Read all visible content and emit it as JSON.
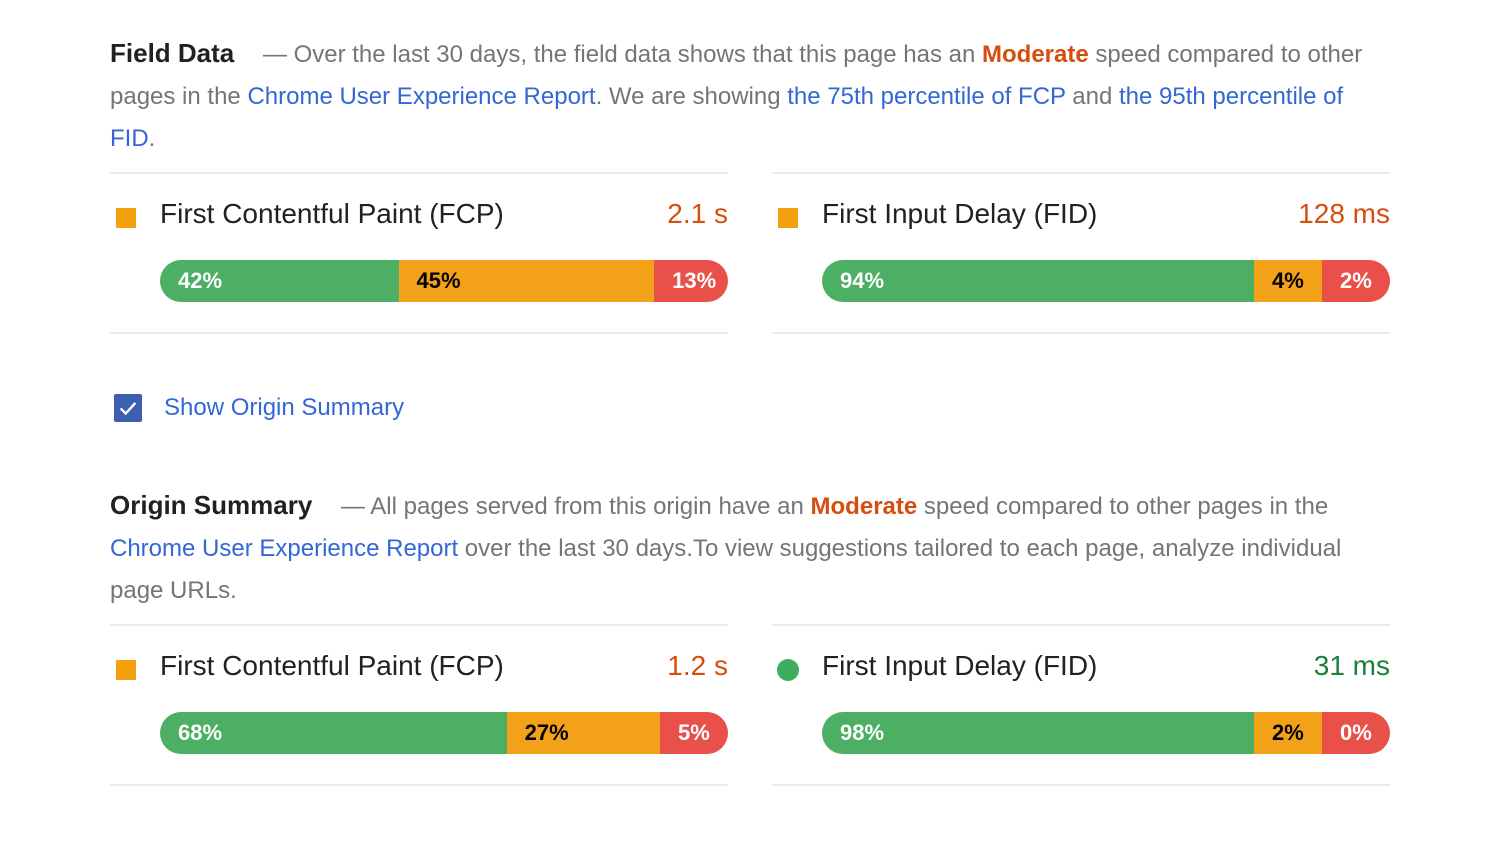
{
  "field_data": {
    "heading": "Field Data",
    "text_1": " — Over the last 30 days, the field data shows that this page has an ",
    "rating": "Moderate",
    "text_2": " speed compared to other pages in the ",
    "report_link": "Chrome User Experience Report",
    "text_3": ". We are showing ",
    "fcp_link": "the 75th percentile of FCP",
    "text_4": " and ",
    "fid_link": "the 95th percentile of FID",
    "text_5": ".",
    "fcp": {
      "title": "First Contentful Paint (FCP)",
      "value": "2.1 s",
      "fast_pct": 42,
      "fast": "42%",
      "avg_pct": 45,
      "avg": "45%",
      "slow_pct": 13,
      "slow": "13%",
      "status_color": "#f4a10f"
    },
    "fid": {
      "title": "First Input Delay (FID)",
      "value": "128 ms",
      "fast_pct": 94,
      "fast": "94%",
      "avg_pct": 4,
      "avg": "4%",
      "slow_pct": 2,
      "slow": "2%",
      "status_color": "#f4a10f"
    }
  },
  "origin_toggle": {
    "label": "Show Origin Summary",
    "checked": true
  },
  "origin_summary": {
    "heading": "Origin Summary",
    "text_1": " — All pages served from this origin have an ",
    "rating": "Moderate",
    "text_2": " speed compared to other pages in the ",
    "report_link": "Chrome User Experience Report",
    "text_3": " over the last 30 days.To view suggestions tailored to each page, analyze individual page URLs.",
    "fcp": {
      "title": "First Contentful Paint (FCP)",
      "value": "1.2 s",
      "fast_pct": 68,
      "fast": "68%",
      "avg_pct": 27,
      "avg": "27%",
      "slow_pct": 5,
      "slow": "5%",
      "status_color": "#f4a10f"
    },
    "fid": {
      "title": "First Input Delay (FID)",
      "value": "31 ms",
      "fast_pct": 98,
      "fast": "98%",
      "avg_pct": 2,
      "avg": "2%",
      "slow_pct": 0,
      "slow": "0%",
      "status_color": "#3ead5b"
    }
  },
  "colors": {
    "fast": "#4caf63",
    "average": "#f4a11a",
    "slow": "#e9504a",
    "link": "#3367d6",
    "moderate": "#d64d0e"
  }
}
